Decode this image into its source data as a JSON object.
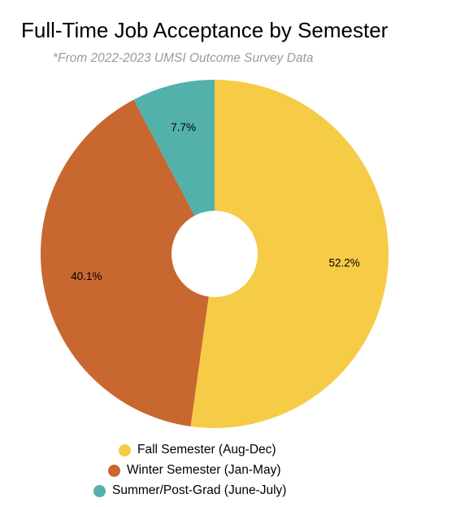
{
  "title": "Full-Time Job Acceptance by Semester",
  "subtitle": "*From 2022-2023 UMSI Outcome Survey Data",
  "chart_data": {
    "type": "pie",
    "variant": "donut",
    "title": "Full-Time Job Acceptance by Semester",
    "subtitle": "*From 2022-2023 UMSI Outcome Survey Data",
    "categories": [
      "Fall Semester (Aug-Dec)",
      "Winter Semester (Jan-May)",
      "Summer/Post-Grad (June-July)"
    ],
    "values": [
      52.2,
      40.1,
      7.7
    ],
    "data_labels": [
      "52.2%",
      "40.1%",
      "7.7%"
    ],
    "colors": [
      "#F6CB45",
      "#C8672F",
      "#52B1AB"
    ],
    "legend": "bottom"
  }
}
